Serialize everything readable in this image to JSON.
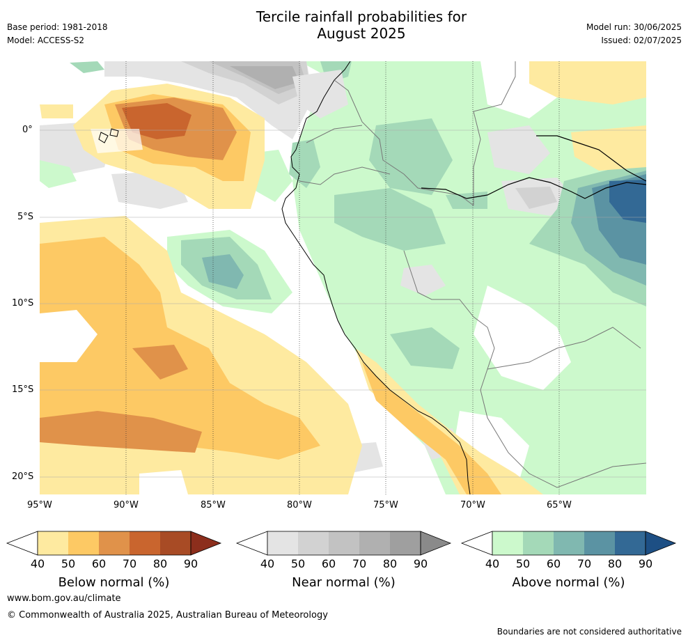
{
  "title_line1": "Tercile rainfall probabilities for",
  "title_line2": "August 2025",
  "base_period": "Base period: 1981-2018",
  "model": "Model: ACCESS-S2",
  "model_run": "Model run: 30/06/2025",
  "issued": "Issued: 02/07/2025",
  "lat_labels": [
    "0°",
    "5°S",
    "10°S",
    "15°S",
    "20°S"
  ],
  "lon_labels": [
    "95°W",
    "90°W",
    "85°W",
    "80°W",
    "75°W",
    "70°W",
    "65°W"
  ],
  "colorbars": [
    {
      "label": "Below normal (%)",
      "ticks": [
        "40",
        "50",
        "60",
        "70",
        "80",
        "90"
      ],
      "colors": [
        "#ffffff",
        "#feeaa0",
        "#fdc964",
        "#e0924a",
        "#c9652e",
        "#a84b25",
        "#8c2e1c"
      ]
    },
    {
      "label": "Near normal (%)",
      "ticks": [
        "40",
        "50",
        "60",
        "70",
        "80",
        "90"
      ],
      "colors": [
        "#ffffff",
        "#e4e4e4",
        "#d2d2d2",
        "#c2c2c2",
        "#b0b0b0",
        "#9f9f9f",
        "#8a8a8a"
      ]
    },
    {
      "label": "Above normal (%)",
      "ticks": [
        "40",
        "50",
        "60",
        "70",
        "80",
        "90"
      ],
      "colors": [
        "#ffffff",
        "#ccf9cc",
        "#a4d9b8",
        "#80b8b0",
        "#5b93a3",
        "#336995",
        "#1d4f84"
      ]
    }
  ],
  "website": "www.bom.gov.au/climate",
  "copyright": "© Commonwealth of Australia 2025, Australian Bureau of Meteorology",
  "disclaimer": "Boundaries are not considered authoritative"
}
